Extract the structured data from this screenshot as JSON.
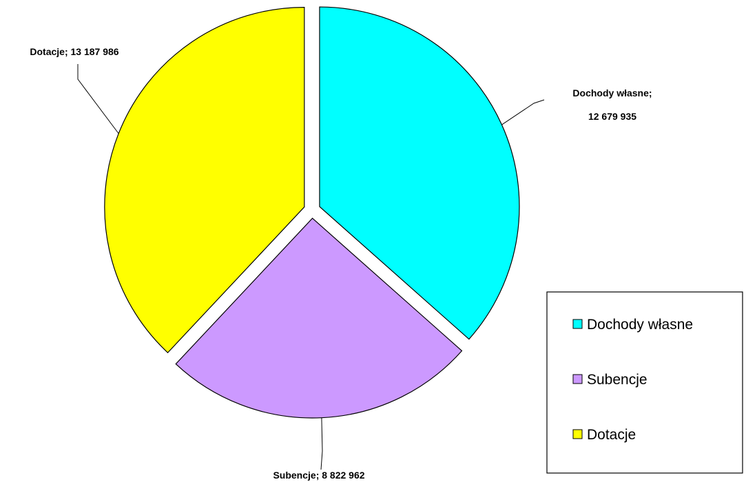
{
  "chart_data": {
    "type": "pie",
    "title": "",
    "series": [
      {
        "categories": [
          "Dochody własne",
          "Subencje",
          "Dotacje"
        ],
        "values": [
          12679935,
          8822962,
          13187986
        ],
        "colors": [
          "#00ffff",
          "#cc99ff",
          "#ffff00"
        ],
        "labels": [
          "Dochody własne; 12 679 935",
          "Subencje; 8 822 962",
          "Dotacje; 13 187 986"
        ]
      }
    ],
    "legend": {
      "placement": "right",
      "entries": [
        "Dochody własne",
        "Subencje",
        "Dotacje"
      ]
    }
  }
}
